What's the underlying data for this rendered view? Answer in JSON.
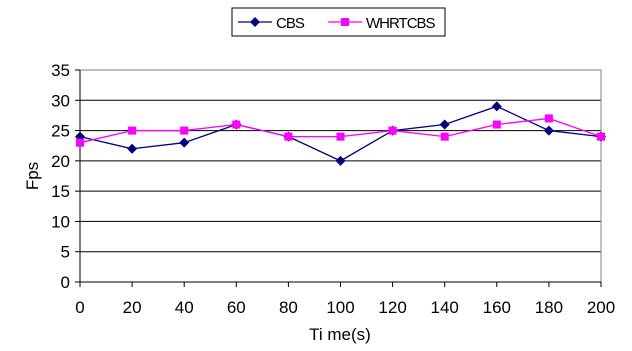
{
  "chart_data": {
    "type": "line",
    "title": "",
    "xlabel": "Ti me(s)",
    "ylabel": "Fps",
    "x": [
      0,
      20,
      40,
      60,
      80,
      100,
      120,
      140,
      160,
      180,
      200
    ],
    "xlim": [
      0,
      200
    ],
    "ylim": [
      0,
      35
    ],
    "yticks": [
      0,
      5,
      10,
      15,
      20,
      25,
      30,
      35
    ],
    "grid": "horizontal",
    "legend": "top-center",
    "series": [
      {
        "name": "CBS",
        "color": "#000080",
        "marker": "diamond",
        "values": [
          24,
          22,
          23,
          26,
          24,
          20,
          25,
          26,
          29,
          25,
          24
        ]
      },
      {
        "name": "WHRTCBS",
        "color": "#FF00FF",
        "marker": "square",
        "values": [
          23,
          25,
          25,
          26,
          24,
          24,
          25,
          24,
          26,
          27,
          24
        ]
      }
    ]
  }
}
